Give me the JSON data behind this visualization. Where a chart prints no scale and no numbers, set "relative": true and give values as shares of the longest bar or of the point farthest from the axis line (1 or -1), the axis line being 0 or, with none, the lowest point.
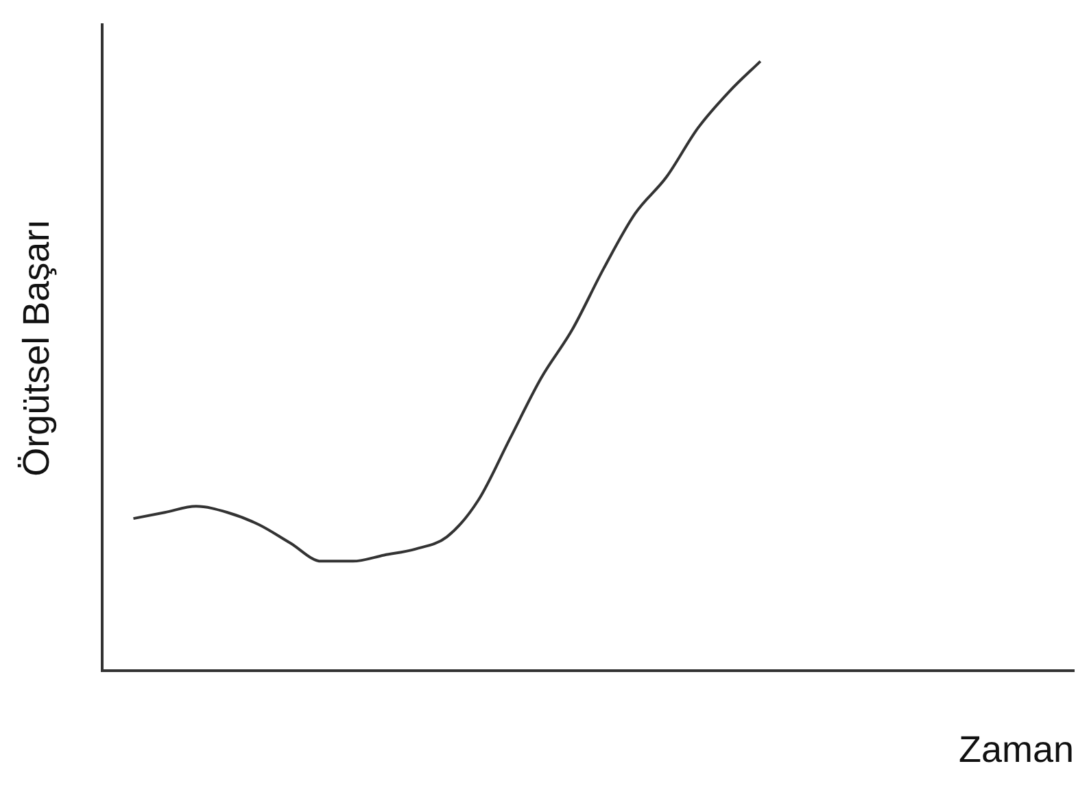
{
  "chart_data": {
    "type": "line",
    "relative": true,
    "xlabel": "Zaman",
    "ylabel": "Örgütsel Başarı",
    "grid": false,
    "legend": false,
    "marker": "none",
    "line_style": "solid",
    "categories": [
      null,
      null,
      null,
      null,
      null,
      null,
      null,
      null,
      null,
      null,
      null,
      null,
      null,
      null,
      null,
      null,
      null,
      null,
      null,
      null,
      null,
      null,
      null,
      null,
      null,
      null,
      null,
      null,
      null,
      null,
      null,
      null
    ],
    "series": [
      {
        "color": "#333333",
        "values": [
          null,
          0.25,
          0.26,
          0.27,
          0.26,
          0.24,
          0.21,
          0.18,
          0.18,
          0.19,
          0.2,
          0.22,
          0.28,
          0.38,
          0.48,
          0.56,
          0.66,
          0.75,
          0.81,
          0.89,
          0.95,
          1,
          null,
          null,
          null,
          null,
          null,
          null,
          null,
          null,
          null,
          null
        ]
      }
    ]
  }
}
